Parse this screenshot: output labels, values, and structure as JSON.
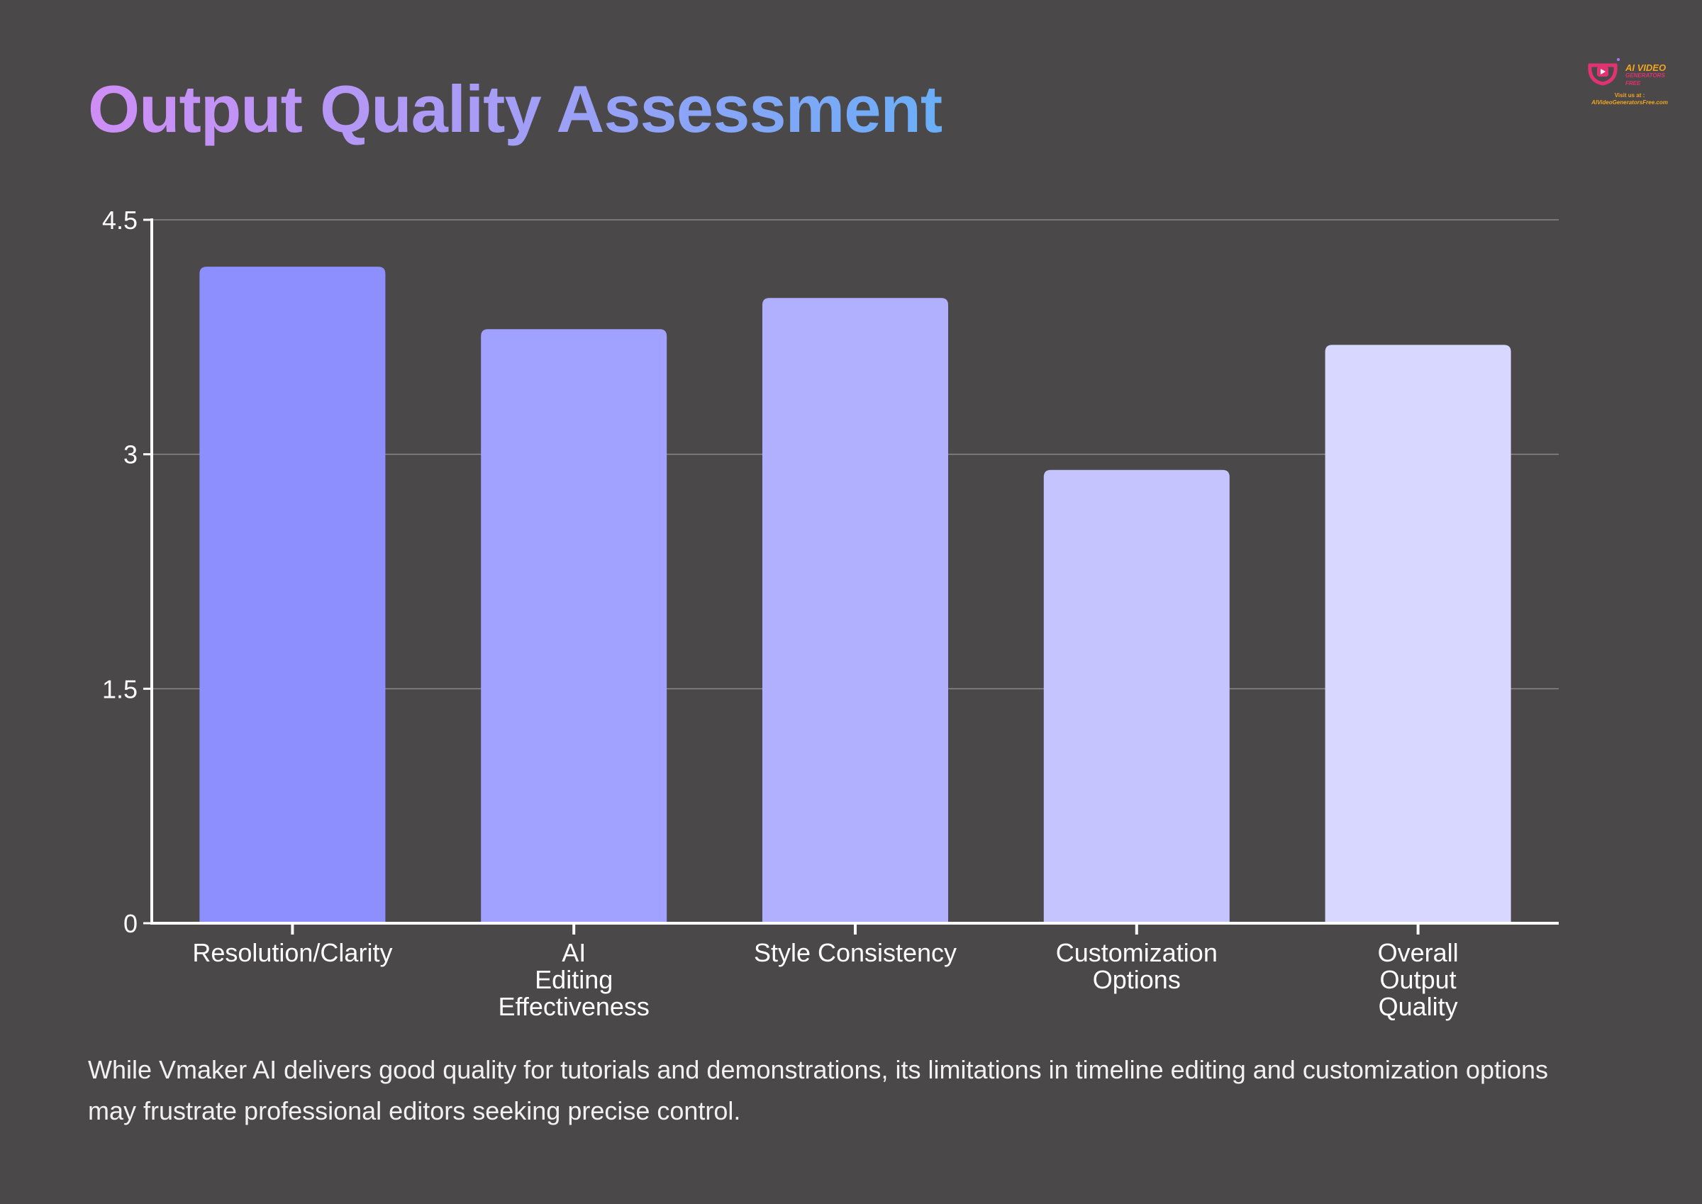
{
  "title": "Output Quality Assessment",
  "logo": {
    "brand_line1": "AI VIDEO",
    "brand_line2": "GENERATORS FREE",
    "visit": "Visit us at :",
    "site": "AIVideoGeneratorsFree.com"
  },
  "chart_data": {
    "type": "bar",
    "title": "Output Quality Assessment",
    "categories": [
      [
        "Resolution/Clarity"
      ],
      [
        "AI",
        "Editing",
        "Effectiveness"
      ],
      [
        "Style Consistency"
      ],
      [
        "Customization",
        "Options"
      ],
      [
        "Overall",
        "Output",
        "Quality"
      ]
    ],
    "values": [
      4.2,
      3.8,
      4.0,
      2.9,
      3.7
    ],
    "colors": [
      "#8e8fff",
      "#a1a1ff",
      "#b1b0ff",
      "#c5c4ff",
      "#d8d7ff"
    ],
    "ylim": [
      0,
      4.5
    ],
    "yticks": [
      0,
      1.5,
      3,
      4.5
    ],
    "ytick_labels": [
      "0",
      "1.5",
      "3",
      "4.5"
    ],
    "xlabel": "",
    "ylabel": "",
    "grid": true
  },
  "caption": "While Vmaker AI delivers good quality for tutorials and demonstrations, its limitations in timeline editing and customization options may frustrate professional editors seeking precise control."
}
